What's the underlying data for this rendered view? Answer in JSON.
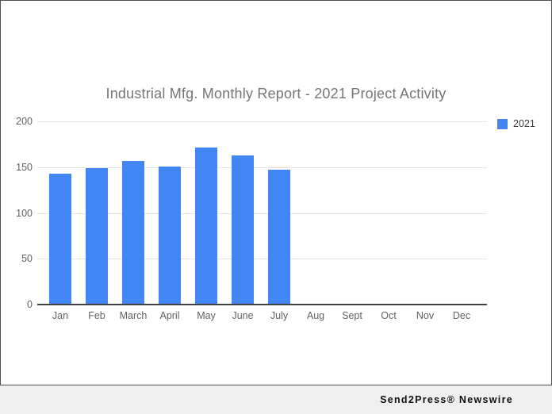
{
  "page": {
    "footer_brand": "Send2Press® Newswire"
  },
  "chart_data": {
    "type": "bar",
    "title": "Industrial Mfg. Monthly Report - 2021 Project Activity",
    "categories": [
      "Jan",
      "Feb",
      "March",
      "April",
      "May",
      "June",
      "July",
      "Aug",
      "Sept",
      "Oct",
      "Nov",
      "Dec"
    ],
    "series": [
      {
        "name": "2021",
        "values": [
          143,
          149,
          157,
          151,
          171,
          163,
          147,
          null,
          null,
          null,
          null,
          null
        ]
      }
    ],
    "xlabel": "",
    "ylabel": "",
    "ylim": [
      0,
      200
    ],
    "yticks": [
      0,
      50,
      100,
      150,
      200
    ],
    "grid": true,
    "legend_position": "top-right",
    "colors": {
      "bar": "#4285f4",
      "title_text": "#757575",
      "axis_text": "#616161",
      "legend_text": "#3c3c3c",
      "gridline": "#e3e3e3",
      "baseline": "#424242",
      "border": "#4f4f4f",
      "footer_bg": "#f0f0f0",
      "footer_text": "#111111"
    }
  }
}
